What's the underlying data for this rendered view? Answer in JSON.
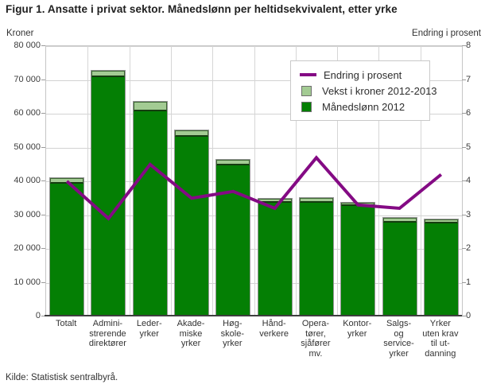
{
  "title": "Figur 1. Ansatte i privat sektor. Månedslønn per heltidsekvivalent, etter yrke",
  "source": "Kilde: Statistisk sentralbyrå.",
  "left_axis_unit": "Kroner",
  "right_axis_unit": "Endring i prosent",
  "legend": [
    {
      "label": "Endring i prosent",
      "swatch": "line",
      "color": "#840a84"
    },
    {
      "label": "Vekst i kroner 2012-2013",
      "swatch": "box",
      "color": "#a3cb93"
    },
    {
      "label": "Månedslønn 2012",
      "swatch": "box",
      "color": "#047f04"
    }
  ],
  "colors": {
    "bar_base": "#047f04",
    "bar_growth": "#a3cb93",
    "line": "#840a84",
    "grid": "#d2d2d2",
    "axis": "#3f3f3f"
  },
  "chart_data": {
    "type": "bar",
    "subtype": "stacked bars with secondary-axis line",
    "title": "Figur 1. Ansatte i privat sektor. Månedslønn per heltidsekvivalent, etter yrke",
    "categories": [
      "Totalt",
      "Administrerende direktører",
      "Lederyrker",
      "Akademiske yrker",
      "Høgskoleyrker",
      "Håndverkere",
      "Operatører, sjåfører mv.",
      "Kontoryrker",
      "Salgs- og serviceyrker",
      "Yrker uten krav til utdanning"
    ],
    "category_label_lines": [
      [
        "Totalt"
      ],
      [
        "Admini-",
        "strerende",
        "direktører"
      ],
      [
        "Leder-",
        "yrker"
      ],
      [
        "Akade-",
        "miske",
        "yrker"
      ],
      [
        "Høg-",
        "skole-",
        "yrker"
      ],
      [
        "Hånd-",
        "verkere"
      ],
      [
        "Opera-",
        "tører,",
        "sjåfører",
        "mv."
      ],
      [
        "Kontor-",
        "yrker"
      ],
      [
        "Salgs-",
        "og",
        "service-",
        "yrker"
      ],
      [
        "Yrker",
        "uten krav",
        "til ut-",
        "danning"
      ]
    ],
    "series": [
      {
        "name": "Månedslønn 2012",
        "type": "bar",
        "axis": "left",
        "values": [
          39600,
          71000,
          61000,
          53300,
          45000,
          34000,
          33900,
          32900,
          28000,
          27700
        ]
      },
      {
        "name": "Vekst i kroner 2012-2013",
        "type": "bar-stacked",
        "axis": "left",
        "values": [
          1600,
          2000,
          2700,
          1900,
          1700,
          1100,
          1400,
          1100,
          1300,
          1200
        ]
      },
      {
        "name": "Endring i prosent",
        "type": "line",
        "axis": "right",
        "values": [
          4.0,
          2.9,
          4.5,
          3.5,
          3.7,
          3.2,
          4.7,
          3.3,
          3.2,
          4.2
        ]
      }
    ],
    "left_axis": {
      "label": "Kroner",
      "min": 0,
      "max": 80000,
      "tick_labels": [
        "0",
        "10 000",
        "20 000",
        "30 000",
        "40 000",
        "50 000",
        "60 000",
        "70 000",
        "80 000"
      ]
    },
    "right_axis": {
      "label": "Endring i prosent",
      "min": 0,
      "max": 8,
      "tick_labels": [
        "0",
        "1",
        "2",
        "3",
        "4",
        "5",
        "6",
        "7",
        "8"
      ]
    },
    "grid": true,
    "legend_position": "top-right"
  }
}
